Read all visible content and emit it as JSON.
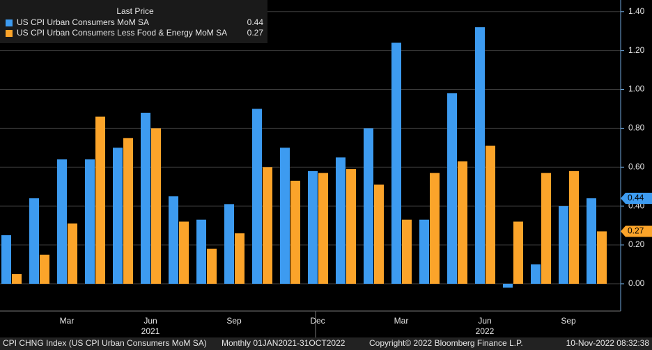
{
  "chart_data": {
    "type": "bar",
    "legend_header": "Last Price",
    "categories": [
      null,
      null,
      "Mar",
      null,
      null,
      "Jun",
      null,
      null,
      "Sep",
      null,
      null,
      "Dec",
      null,
      null,
      "Mar",
      null,
      null,
      "Jun",
      null,
      null,
      "Sep",
      null
    ],
    "years": [
      {
        "label": "2021",
        "index": 5
      },
      {
        "label": "2022",
        "index": 17
      }
    ],
    "series": [
      {
        "name": "US CPI Urban Consumers MoM SA",
        "color": "#3d9bf0",
        "last": 0.44,
        "values": [
          0.25,
          0.44,
          0.64,
          0.64,
          0.7,
          0.88,
          0.45,
          0.33,
          0.41,
          0.9,
          0.7,
          0.58,
          0.65,
          0.8,
          1.24,
          0.33,
          0.98,
          1.32,
          -0.02,
          0.1,
          0.4,
          0.44
        ]
      },
      {
        "name": "US CPI Urban Consumers Less Food & Energy MoM SA",
        "color": "#fba42a",
        "last": 0.27,
        "values": [
          0.05,
          0.15,
          0.31,
          0.86,
          0.75,
          0.8,
          0.32,
          0.18,
          0.26,
          0.6,
          0.53,
          0.57,
          0.59,
          0.51,
          0.33,
          0.57,
          0.63,
          0.71,
          0.32,
          0.57,
          0.58,
          0.27
        ]
      }
    ],
    "ylim": [
      -0.14,
      1.46
    ],
    "yticks": [
      {
        "value": 0,
        "label": "0.00"
      },
      {
        "value": 0.2,
        "label": "0.20"
      },
      {
        "value": 0.4,
        "label": "0.40"
      },
      {
        "value": 0.6,
        "label": "0.60"
      },
      {
        "value": 0.8,
        "label": "0.80"
      },
      {
        "value": 1.0,
        "label": "1.00"
      },
      {
        "value": 1.2,
        "label": "1.20"
      },
      {
        "value": 1.4,
        "label": "1.40"
      }
    ],
    "grid": true,
    "footer": {
      "index": "CPI CHNG Index (US CPI Urban Consumers MoM SA)",
      "period": "Monthly 01JAN2021-31OCT2022",
      "copyright": "Copyright© 2022 Bloomberg Finance L.P.",
      "timestamp": "10-Nov-2022 08:32:38"
    }
  }
}
